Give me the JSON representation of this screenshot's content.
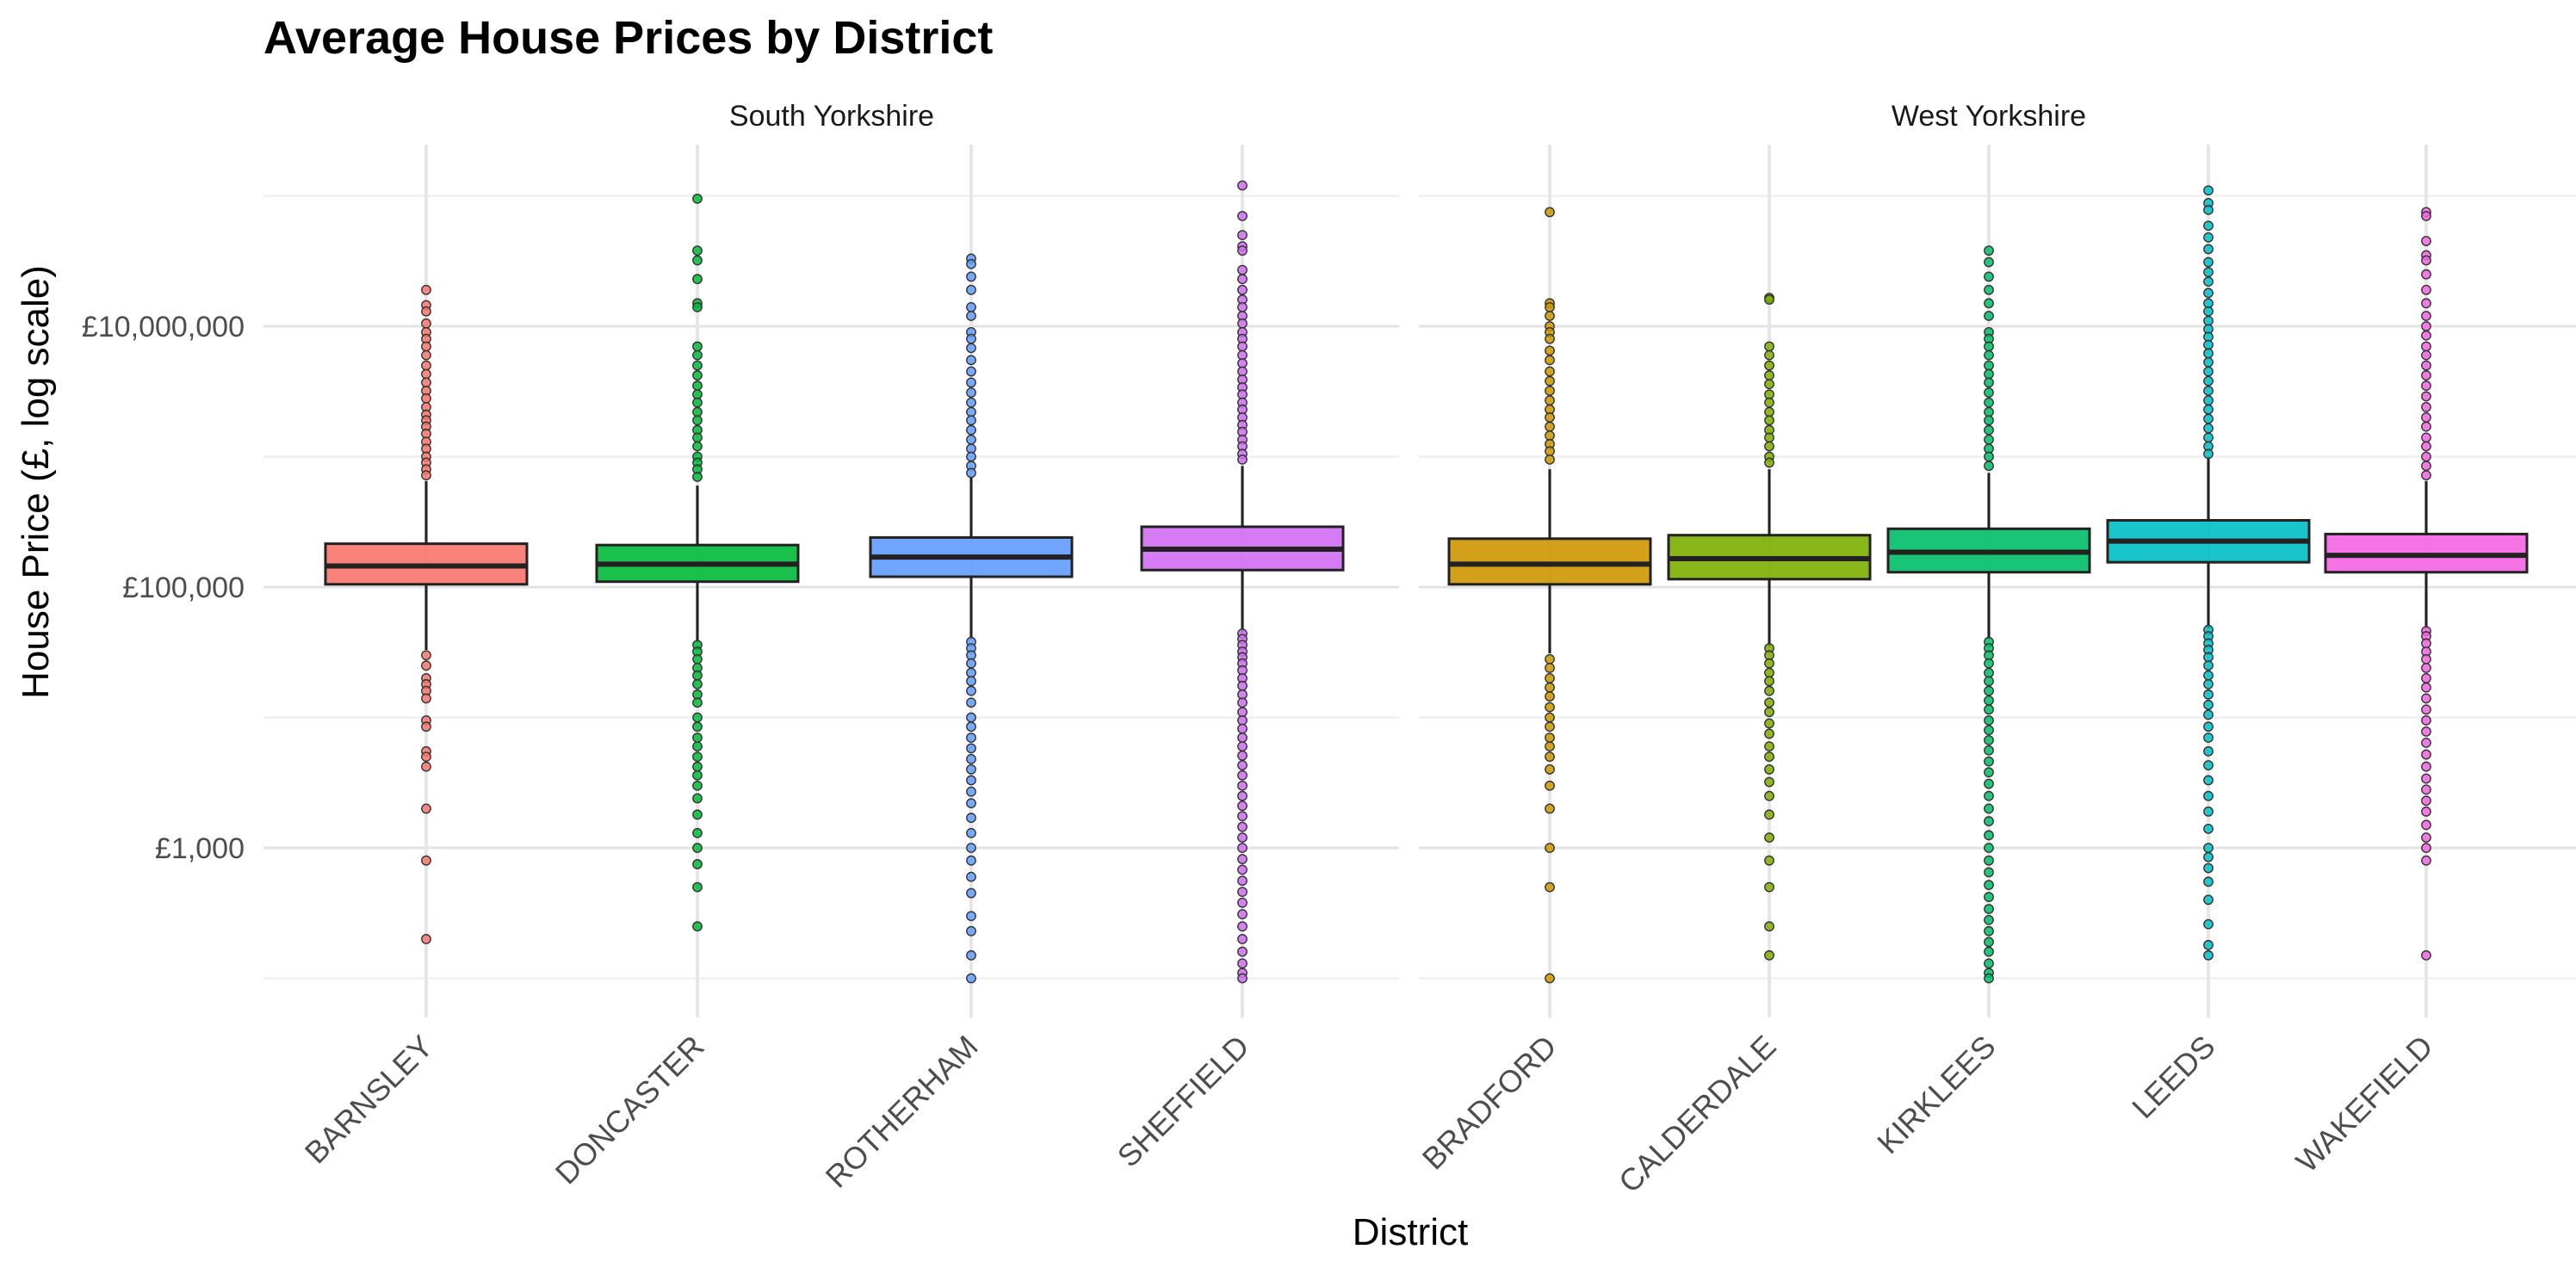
{
  "chart_data": {
    "type": "box",
    "title": "Average House Prices by District",
    "xlabel": "District",
    "ylabel": "House Price (£, log scale)",
    "y_scale": "log10",
    "ylim": [
      100,
      120000000
    ],
    "y_ticks": [
      {
        "value": 1000,
        "label": "£1,000"
      },
      {
        "value": 100000,
        "label": "£100,000"
      },
      {
        "value": 10000000,
        "label": "£10,000,000"
      }
    ],
    "grid": true,
    "legend": "none",
    "facets": [
      {
        "label": "South Yorkshire",
        "districts": [
          {
            "name": "BARNSLEY",
            "color": "#F8766D",
            "q1": 105000,
            "median": 145000,
            "q3": 215000,
            "whisker_low": 33000,
            "whisker_high": 650000,
            "outliers": [
              19000000,
              14500000,
              13000000,
              10500000,
              9000000,
              8000000,
              7000000,
              6000000,
              5000000,
              4300000,
              3700000,
              3200000,
              2800000,
              2400000,
              2100000,
              1900000,
              1700000,
              1500000,
              1300000,
              1150000,
              1000000,
              900000,
              800000,
              720000,
              30000,
              25000,
              20000,
              18000,
              16000,
              14000,
              9500,
              8500,
              5500,
              5000,
              4200,
              2000,
              800,
              200
            ]
          },
          {
            "name": "DONCASTER",
            "color": "#00BA38",
            "q1": 110000,
            "median": 150000,
            "q3": 210000,
            "whisker_low": 38000,
            "whisker_high": 600000,
            "outliers": [
              95000000,
              38000000,
              32000000,
              23000000,
              15000000,
              14000000,
              7000000,
              6000000,
              5000000,
              4200000,
              3500000,
              3000000,
              2600000,
              2200000,
              1900000,
              1600000,
              1400000,
              1200000,
              1000000,
              900000,
              800000,
              700000,
              36000,
              32000,
              28000,
              24000,
              21000,
              18000,
              15000,
              13000,
              10000,
              8500,
              7000,
              6000,
              5000,
              4200,
              3600,
              3000,
              2400,
              1800,
              1300,
              1000,
              750,
              500,
              250
            ]
          },
          {
            "name": "ROTHERHAM",
            "color": "#619CFF",
            "q1": 120000,
            "median": 170000,
            "q3": 240000,
            "whisker_low": 40000,
            "whisker_high": 700000,
            "outliers": [
              33000000,
              30000000,
              24000000,
              19000000,
              14000000,
              12000000,
              9000000,
              8000000,
              6800000,
              5500000,
              4500000,
              3700000,
              3100000,
              2600000,
              2200000,
              1900000,
              1600000,
              1350000,
              1150000,
              1000000,
              850000,
              750000,
              38000,
              34000,
              30000,
              26000,
              22000,
              19000,
              16000,
              13000,
              10000,
              8500,
              7000,
              5800,
              4800,
              4000,
              3300,
              2700,
              2200,
              1700,
              1300,
              1000,
              800,
              600,
              450,
              300,
              230,
              150,
              100
            ]
          },
          {
            "name": "SHEFFIELD",
            "color": "#D06DF2",
            "q1": 135000,
            "median": 195000,
            "q3": 290000,
            "whisker_low": 45000,
            "whisker_high": 850000,
            "outliers": [
              120000000,
              70000000,
              50000000,
              41000000,
              38000000,
              27000000,
              23000000,
              19000000,
              16000000,
              14000000,
              12000000,
              10500000,
              9000000,
              8000000,
              7000000,
              6000000,
              5200000,
              4500000,
              3900000,
              3400000,
              3000000,
              2600000,
              2300000,
              2000000,
              1750000,
              1550000,
              1350000,
              1200000,
              1050000,
              950000,
              44000,
              40000,
              36000,
              32000,
              29000,
              26000,
              23000,
              20000,
              17500,
              15000,
              13000,
              11000,
              9500,
              8200,
              7000,
              6000,
              5100,
              4300,
              3600,
              3000,
              2500,
              2100,
              1750,
              1450,
              1200,
              1000,
              820,
              680,
              560,
              460,
              380,
              310,
              250,
              200,
              160,
              130,
              110,
              100
            ]
          }
        ]
      },
      {
        "label": "West Yorkshire",
        "districts": [
          {
            "name": "BRADFORD",
            "color": "#CD9600",
            "q1": 105000,
            "median": 150000,
            "q3": 235000,
            "whisker_low": 31000,
            "whisker_high": 800000,
            "outliers": [
              75000000,
              15000000,
              14000000,
              12000000,
              10000000,
              9000000,
              8000000,
              6500000,
              5500000,
              4500000,
              3800000,
              3200000,
              2700000,
              2300000,
              2000000,
              1700000,
              1450000,
              1250000,
              1100000,
              950000,
              28000,
              24000,
              20000,
              17000,
              14500,
              12000,
              10000,
              8500,
              7000,
              6000,
              5000,
              4000,
              3000,
              2000,
              1000,
              500,
              100
            ]
          },
          {
            "name": "CALDERDALE",
            "color": "#7CAE00",
            "q1": 115000,
            "median": 165000,
            "q3": 250000,
            "whisker_low": 35000,
            "whisker_high": 800000,
            "outliers": [
              16500000,
              16000000,
              7000000,
              6000000,
              5000000,
              4200000,
              3600000,
              3000000,
              2600000,
              2200000,
              1900000,
              1600000,
              1400000,
              1200000,
              1000000,
              900000,
              34000,
              30000,
              26000,
              22000,
              19000,
              16000,
              13000,
              11000,
              9000,
              7500,
              6000,
              5000,
              4000,
              3200,
              2500,
              1800,
              1200,
              800,
              500,
              250,
              150
            ]
          },
          {
            "name": "KIRKLEES",
            "color": "#00BE67",
            "q1": 130000,
            "median": 185000,
            "q3": 280000,
            "whisker_low": 40000,
            "whisker_high": 750000,
            "outliers": [
              38000000,
              31000000,
              24000000,
              19000000,
              15000000,
              12000000,
              9000000,
              8000000,
              7000000,
              6000000,
              5000000,
              4300000,
              3700000,
              3100000,
              2600000,
              2200000,
              1900000,
              1600000,
              1350000,
              1150000,
              1000000,
              850000,
              38000,
              34000,
              30000,
              26000,
              22000,
              19000,
              16000,
              13500,
              11500,
              9500,
              8000,
              6700,
              5600,
              4600,
              3800,
              3100,
              2500,
              2000,
              1600,
              1250,
              1000,
              800,
              650,
              520,
              420,
              340,
              280,
              230,
              190,
              160,
              130,
              110,
              100
            ]
          },
          {
            "name": "LEEDS",
            "color": "#00BFC4",
            "q1": 155000,
            "median": 225000,
            "q3": 325000,
            "whisker_low": 48000,
            "whisker_high": 1000000,
            "outliers": [
              110000000,
              88000000,
              78000000,
              59000000,
              48000000,
              39000000,
              31000000,
              26000000,
              22000000,
              18000000,
              15000000,
              13000000,
              11000000,
              9500000,
              8300000,
              7200000,
              6200000,
              5300000,
              4500000,
              3800000,
              3200000,
              2700000,
              2300000,
              1950000,
              1650000,
              1400000,
              1200000,
              1050000,
              47000,
              42000,
              37000,
              33000,
              29000,
              25000,
              21000,
              18000,
              15000,
              12500,
              10500,
              8500,
              7000,
              5500,
              4300,
              3300,
              2500,
              1900,
              1400,
              1000,
              850,
              700,
              550,
              400,
              260,
              180,
              150
            ]
          },
          {
            "name": "WAKEFIELD",
            "color": "#F564E3",
            "q1": 130000,
            "median": 175000,
            "q3": 255000,
            "whisker_low": 48000,
            "whisker_high": 650000,
            "outliers": [
              75000000,
              70000000,
              45000000,
              35000000,
              32000000,
              25000000,
              19000000,
              15000000,
              12000000,
              10000000,
              8500000,
              7000000,
              6000000,
              5000000,
              4200000,
              3500000,
              2900000,
              2400000,
              2000000,
              1700000,
              1400000,
              1200000,
              1000000,
              850000,
              720000,
              46000,
              42000,
              37000,
              32000,
              28000,
              24000,
              20000,
              17000,
              14000,
              11500,
              9500,
              7800,
              6400,
              5200,
              4200,
              3400,
              2800,
              2300,
              1900,
              1500,
              1200,
              1000,
              800,
              150
            ]
          }
        ]
      }
    ]
  }
}
